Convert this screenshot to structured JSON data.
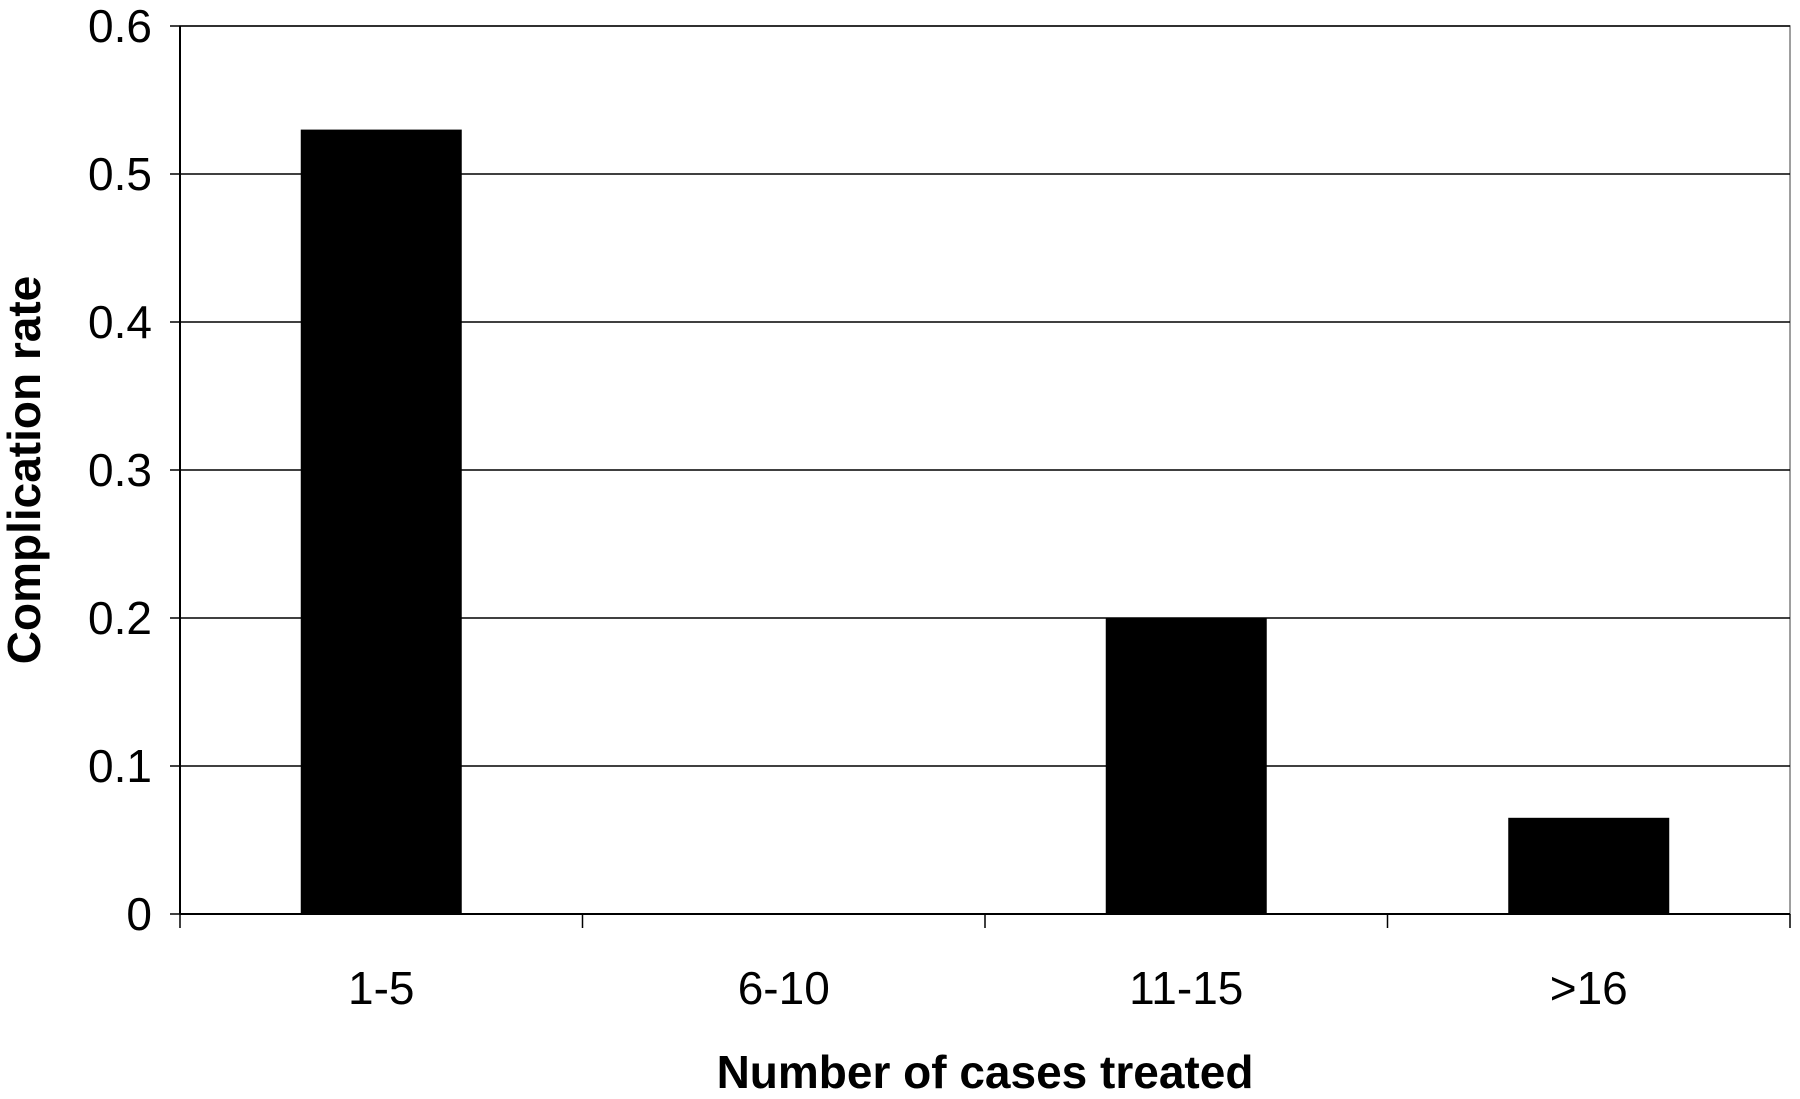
{
  "chart_data": {
    "type": "bar",
    "title": "",
    "xlabel": "Number of cases treated",
    "ylabel": "Complication rate",
    "categories": [
      "1-5",
      "6-10",
      "11-15",
      ">16"
    ],
    "values": [
      0.53,
      0,
      0.2,
      0.065
    ],
    "ylim": [
      0,
      0.6
    ],
    "yticks": [
      0,
      0.1,
      0.2,
      0.3,
      0.4,
      0.5,
      0.6
    ],
    "ytick_labels": [
      "0",
      "0.1",
      "0.2",
      "0.3",
      "0.4",
      "0.5",
      "0.6"
    ],
    "grid": true,
    "legend": "none",
    "bar_color": "#000000",
    "grid_color": "#000000",
    "background": "#ffffff"
  }
}
